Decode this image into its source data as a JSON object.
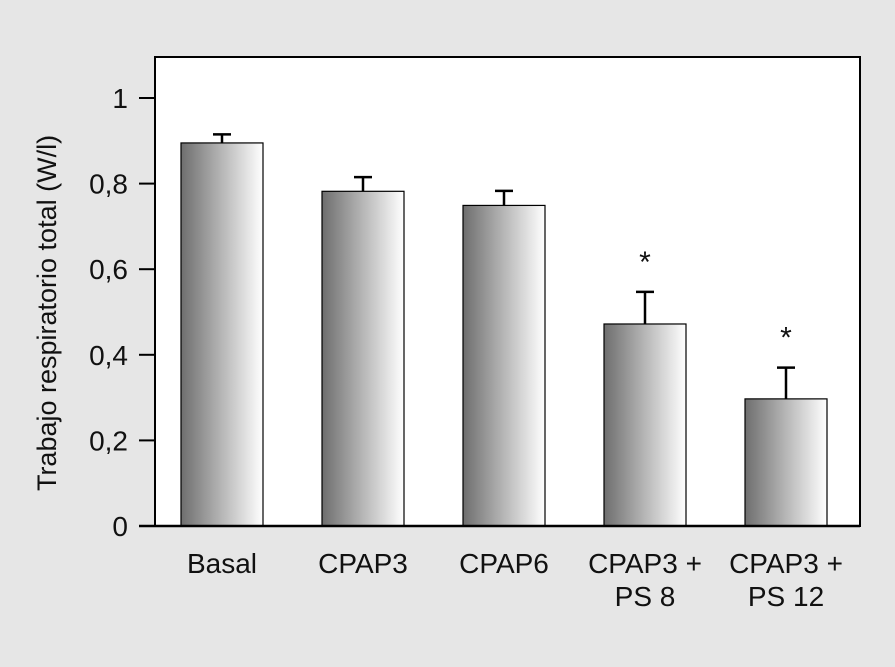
{
  "chart_data": {
    "type": "bar",
    "title": "",
    "xlabel": "",
    "ylabel": "Trabajo respiratorio total (W/l)",
    "ylim": [
      0,
      1.0
    ],
    "yticks": [
      0,
      0.2,
      0.4,
      0.6,
      0.8,
      1
    ],
    "ytick_labels": [
      "0",
      "0,2",
      "0,4",
      "0,6",
      "0,8",
      "1"
    ],
    "categories": [
      [
        "Basal"
      ],
      [
        "CPAP3"
      ],
      [
        "CPAP6"
      ],
      [
        "CPAP3 +",
        "PS 8"
      ],
      [
        "CPAP3 +",
        "PS 12"
      ]
    ],
    "values": [
      0.895,
      0.782,
      0.749,
      0.472,
      0.297
    ],
    "error_upper": [
      0.02,
      0.033,
      0.034,
      0.075,
      0.073
    ],
    "annotations": [
      "",
      "",
      "",
      "*",
      "*"
    ],
    "grid": false,
    "bar_style": "horizontal gradient gray to white",
    "colors": {
      "bar_dark": "#6e6e6e",
      "bar_light": "#ffffff",
      "background": "#e6e6e6",
      "plot_bg": "#ffffff"
    }
  }
}
